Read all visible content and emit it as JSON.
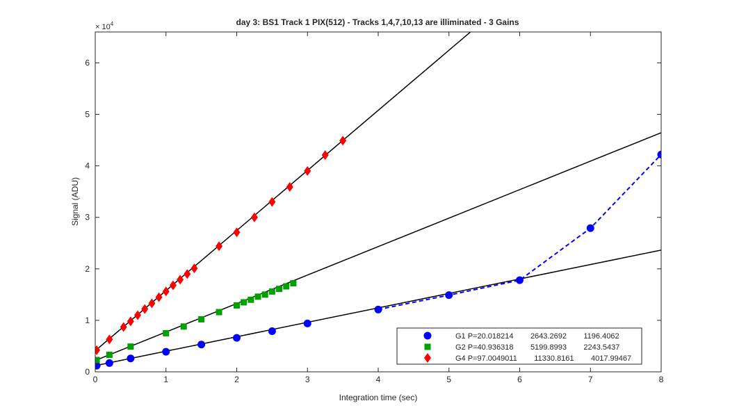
{
  "chart_data": {
    "type": "scatter",
    "title": "day 3: BS1  Track 1 PIX(512) - Tracks 1,4,7,10,13 are illiminated - 3 Gains",
    "xlabel": "Integration time (sec)",
    "ylabel": "Signal (ADU)",
    "xlim": [
      0,
      8
    ],
    "ylim": [
      0,
      66000
    ],
    "x_ticks": [
      0,
      1,
      2,
      3,
      4,
      5,
      6,
      7,
      8
    ],
    "y_ticks": [
      0,
      10000,
      20000,
      30000,
      40000,
      50000,
      60000
    ],
    "y_tick_labels": [
      "0",
      "1",
      "2",
      "3",
      "4",
      "5",
      "6"
    ],
    "y_exponent_base": "× 10",
    "y_exponent_power": "4",
    "grid": false,
    "legend_position": "bottom-right",
    "series": [
      {
        "name": "G1",
        "legend": "G1 P=20.018214        2643.2692        1196.4062",
        "color": "#0000ff",
        "marker": "circle",
        "fit": {
          "slope": 2805,
          "intercept": 1200,
          "style": "solid",
          "color": "#000000"
        },
        "data": [
          [
            0.02,
            1200
          ],
          [
            0.2,
            1700
          ],
          [
            0.5,
            2600
          ],
          [
            1,
            3900
          ],
          [
            1.5,
            5300
          ],
          [
            2,
            6600
          ],
          [
            2.5,
            7900
          ],
          [
            3,
            9400
          ],
          [
            4,
            12100
          ],
          [
            5,
            14900
          ],
          [
            6,
            17800
          ],
          [
            7,
            27900
          ],
          [
            8,
            42200
          ]
        ],
        "dashed_tail": {
          "from_x": 4,
          "color": "#0000ff"
        }
      },
      {
        "name": "G2",
        "legend": "G2 P=40.936318        5199.8993        2243.5437",
        "color": "#00a000",
        "marker": "square",
        "fit": {
          "slope": 5530,
          "intercept": 2200,
          "style": "solid",
          "color": "#000000"
        },
        "data": [
          [
            0.02,
            2300
          ],
          [
            0.2,
            3300
          ],
          [
            0.5,
            4900
          ],
          [
            1,
            7500
          ],
          [
            1.25,
            8800
          ],
          [
            1.5,
            10200
          ],
          [
            1.75,
            11600
          ],
          [
            2,
            12900
          ],
          [
            2.1,
            13500
          ],
          [
            2.2,
            14000
          ],
          [
            2.3,
            14600
          ],
          [
            2.4,
            15000
          ],
          [
            2.5,
            15600
          ],
          [
            2.6,
            16100
          ],
          [
            2.7,
            16600
          ],
          [
            2.8,
            17200
          ]
        ],
        "dashed_tail": null
      },
      {
        "name": "G4",
        "legend": "G4 P=97.0049011        11330.8161        4017.99467",
        "color": "#ff0000",
        "marker": "diamond",
        "fit": {
          "slope": 11670,
          "intercept": 4100,
          "style": "solid",
          "color": "#000000"
        },
        "data": [
          [
            0.02,
            4200
          ],
          [
            0.2,
            6300
          ],
          [
            0.4,
            8700
          ],
          [
            0.5,
            9800
          ],
          [
            0.6,
            11000
          ],
          [
            0.7,
            12200
          ],
          [
            0.8,
            13300
          ],
          [
            0.9,
            14500
          ],
          [
            1,
            15600
          ],
          [
            1.1,
            16800
          ],
          [
            1.2,
            17900
          ],
          [
            1.3,
            19000
          ],
          [
            1.4,
            20100
          ],
          [
            1.75,
            24400
          ],
          [
            2,
            27100
          ],
          [
            2.25,
            30000
          ],
          [
            2.5,
            33000
          ],
          [
            2.75,
            35900
          ],
          [
            3,
            39000
          ],
          [
            3.25,
            42100
          ],
          [
            3.5,
            44900
          ]
        ],
        "dashed_tail": null
      }
    ]
  }
}
